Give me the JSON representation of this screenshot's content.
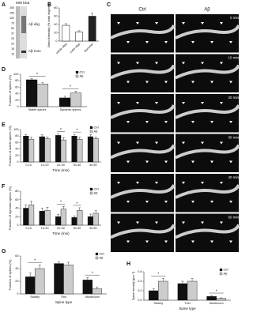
{
  "panel_a": {
    "panel": "A",
    "unit": "MW kDa",
    "markers": [
      "250",
      "150",
      "100",
      "75",
      "50",
      "37",
      "25",
      "20",
      "15",
      "10"
    ],
    "labels": [
      "Aβ olig",
      "Aβ mon"
    ]
  },
  "panel_c": {
    "panel": "C",
    "columns": [
      "Ctrl",
      "Aβ"
    ],
    "rows": [
      "0 min",
      "10 min",
      "20 min",
      "30 min",
      "40 min",
      "50 min"
    ]
  },
  "chart_data": [
    {
      "type": "bar",
      "panel": "B",
      "ylabel": "Band intensity (% total oligomer)",
      "categories": [
        "stable oligo",
        "LMW oligo",
        "Monomer"
      ],
      "values": [
        38,
        22,
        60
      ],
      "errors": [
        4,
        3,
        8
      ],
      "colors": [
        "#ffffff",
        "#ffffff",
        "#222222"
      ],
      "ylim": [
        0,
        80
      ],
      "yticks": [
        0,
        20,
        40,
        60,
        80
      ]
    },
    {
      "type": "grouped-bar",
      "panel": "D",
      "ylabel": "Fraction of spines (%)",
      "categories": [
        "Stable spines",
        "Dynamic spines"
      ],
      "series": [
        {
          "name": "Ctrl",
          "color": "#111111",
          "values": [
            83,
            27
          ],
          "errors": [
            3,
            5
          ]
        },
        {
          "name": "Aβ",
          "color": "#cccccc",
          "values": [
            70,
            42
          ],
          "errors": [
            4,
            6
          ]
        }
      ],
      "ylim": [
        0,
        100
      ],
      "yticks": [
        0,
        20,
        40,
        60,
        80,
        100
      ],
      "annotations": [
        "*",
        "*"
      ],
      "legend": "upper right"
    },
    {
      "type": "grouped-bar",
      "panel": "E",
      "ylabel": "Fraction of stable spines (%)",
      "xlabel": "Time (min)",
      "categories": [
        "0-10",
        "10-20",
        "20-30",
        "30-40",
        "40-50"
      ],
      "series": [
        {
          "name": "Ctrl",
          "color": "#111111",
          "values": [
            80,
            78,
            82,
            80,
            78
          ],
          "errors": [
            5,
            6,
            4,
            5,
            6
          ]
        },
        {
          "name": "Aβ",
          "color": "#cccccc",
          "values": [
            70,
            72,
            68,
            70,
            72
          ],
          "errors": [
            6,
            5,
            7,
            6,
            5
          ]
        }
      ],
      "ylim": [
        0,
        100
      ],
      "yticks": [
        0,
        20,
        40,
        60,
        80,
        100
      ],
      "annotations": [
        "*",
        "*"
      ],
      "legend": "upper right"
    },
    {
      "type": "grouped-bar",
      "panel": "F",
      "ylabel": "Fraction of dynamic spines (%)",
      "xlabel": "Time (min)",
      "categories": [
        "0-10",
        "10-20",
        "20-30",
        "30-40",
        "40-50"
      ],
      "series": [
        {
          "name": "Ctrl",
          "color": "#111111",
          "values": [
            40,
            33,
            20,
            18,
            20
          ],
          "errors": [
            8,
            7,
            5,
            4,
            6
          ]
        },
        {
          "name": "Aβ",
          "color": "#cccccc",
          "values": [
            48,
            35,
            38,
            35,
            28
          ],
          "errors": [
            8,
            7,
            6,
            6,
            7
          ]
        }
      ],
      "ylim": [
        0,
        80
      ],
      "yticks": [
        0,
        20,
        40,
        60,
        80
      ],
      "annotations": [
        "*",
        "*"
      ],
      "legend": "upper right"
    },
    {
      "type": "grouped-bar",
      "panel": "G",
      "ylabel": "Fraction of spines (%)",
      "xlabel": "Spine type",
      "categories": [
        "Stubby",
        "Thin",
        "Mushroom"
      ],
      "series": [
        {
          "name": "Ctrl",
          "color": "#111111",
          "values": [
            27,
            48,
            22
          ],
          "errors": [
            6,
            3,
            4
          ]
        },
        {
          "name": "Aβ",
          "color": "#cccccc",
          "values": [
            40,
            46,
            8
          ],
          "errors": [
            6,
            4,
            3
          ]
        }
      ],
      "ylim": [
        0,
        60
      ],
      "yticks": [
        0,
        20,
        40,
        60
      ],
      "annotations": [
        "*",
        "*"
      ],
      "legend": "upper right"
    },
    {
      "type": "grouped-bar",
      "panel": "H",
      "ylabel": "Spine density [µm⁻¹]",
      "xlabel": "Spine type",
      "categories": [
        "Stubby",
        "Thin",
        "Mushroom"
      ],
      "series": [
        {
          "name": "Ctrl",
          "color": "#111111",
          "values": [
            0.2,
            0.35,
            0.08
          ],
          "errors": [
            0.04,
            0.05,
            0.02
          ]
        },
        {
          "name": "Aβ",
          "color": "#cccccc",
          "values": [
            0.4,
            0.4,
            0.04
          ],
          "errors": [
            0.06,
            0.06,
            0.01
          ]
        }
      ],
      "ylim": [
        0,
        0.6
      ],
      "yticks": [
        {
          "value": 0,
          "label": "0.0"
        },
        0.2,
        0.4,
        0.6
      ],
      "annotations": [
        "*",
        "*"
      ],
      "legend": "upper right"
    }
  ]
}
